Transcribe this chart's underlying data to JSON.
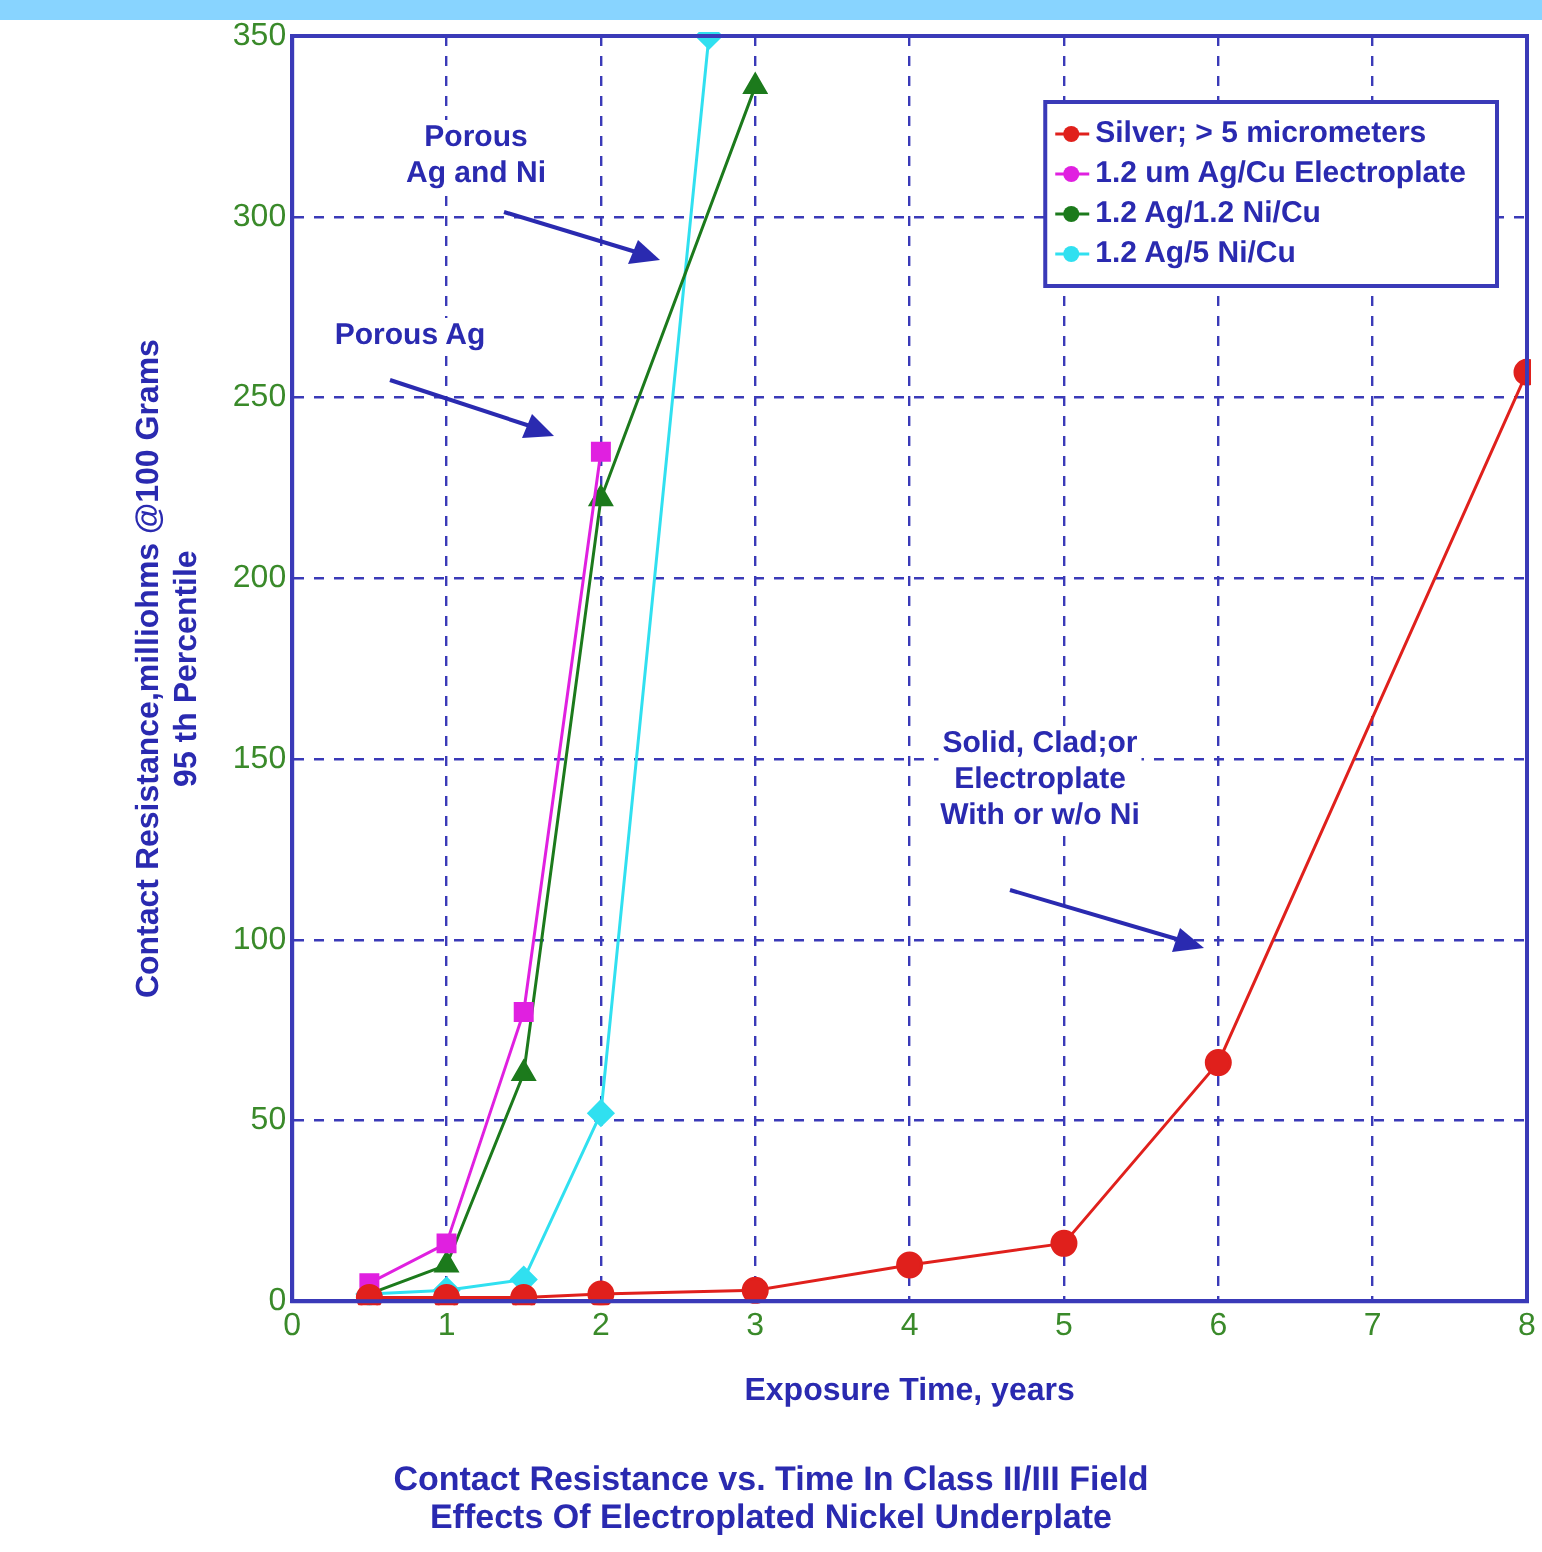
{
  "chart_data": {
    "type": "line",
    "title": "Contact Resistance vs. Time In Class II/III Field\nEffects Of Electroplated Nickel Underplate",
    "xlabel": "Exposure Time, years",
    "ylabel": "Contact Resistance,milliohms @100 Grams\n95 th Percentile",
    "xlim": [
      0,
      8
    ],
    "xticks": [
      0,
      1,
      2,
      3,
      4,
      5,
      6,
      7,
      8
    ],
    "ylim": [
      0,
      350
    ],
    "yticks": [
      0,
      50,
      100,
      150,
      200,
      250,
      300,
      350
    ],
    "grid": true,
    "legend": "top right",
    "line_style": "solid",
    "series": [
      {
        "name": "Silver; > 5 micrometers",
        "color": "#e0201c",
        "marker": "circle",
        "x": [
          0.5,
          1,
          1.5,
          2,
          3,
          4,
          5,
          6,
          8
        ],
        "values": [
          1,
          1,
          1,
          2,
          3,
          10,
          16,
          66,
          257
        ]
      },
      {
        "name": "1.2 um Ag/Cu Electroplate",
        "color": "#e020e0",
        "marker": "square",
        "x": [
          0.5,
          1,
          1.5,
          2
        ],
        "values": [
          5,
          16,
          80,
          235
        ]
      },
      {
        "name": "1.2 Ag/1.2 Ni/Cu",
        "color": "#1c7a1c",
        "marker": "triangle",
        "x": [
          0.5,
          1,
          1.5,
          2,
          3
        ],
        "values": [
          2,
          10,
          63,
          222,
          336
        ]
      },
      {
        "name": "1.2 Ag/5 Ni/Cu",
        "color": "#30e0f0",
        "marker": "diamond",
        "x": [
          0.5,
          1,
          1.5,
          2,
          2.7
        ],
        "values": [
          2,
          3,
          6,
          52,
          350
        ]
      }
    ],
    "annotations": [
      "Porous\nAg and Ni",
      "Porous Ag",
      "Solid, Clad;or\nElectroplate\nWith or w/o Ni"
    ]
  }
}
